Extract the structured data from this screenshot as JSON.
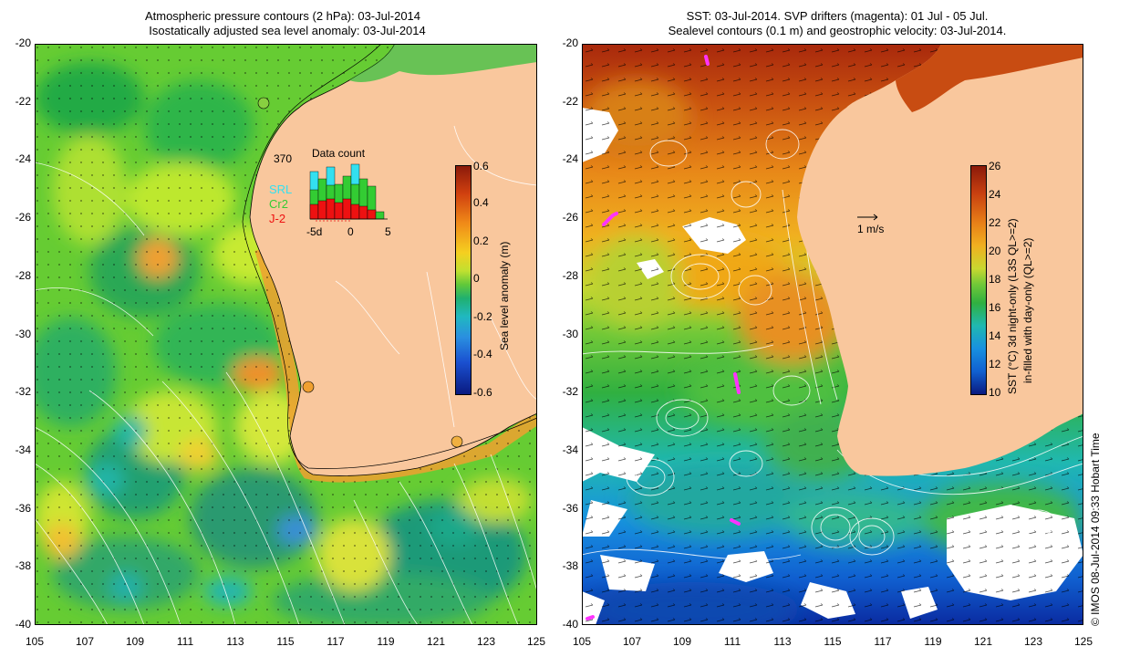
{
  "left_panel": {
    "title_line1": "Atmospheric pressure contours (2 hPa): 03-Jul-2014",
    "title_line2": "Isostatically adjusted sea level anomaly: 03-Jul-2014",
    "y_ticks": [
      "-20",
      "-22",
      "-24",
      "-26",
      "-28",
      "-30",
      "-32",
      "-34",
      "-36",
      "-38",
      "-40"
    ],
    "x_ticks": [
      "105",
      "107",
      "109",
      "111",
      "113",
      "115",
      "117",
      "119",
      "121",
      "123",
      "125"
    ],
    "colorbar": {
      "label": "Sea level anomaly (m)",
      "ticks": [
        "0.6",
        "0.4",
        "0.2",
        "0",
        "-0.2",
        "-0.4",
        "-0.6"
      ],
      "range": [
        -0.6,
        0.6
      ]
    },
    "inset": {
      "title": "Data count",
      "max_count": "370",
      "legend": [
        {
          "name": "SRL",
          "color": "#33e0f0"
        },
        {
          "name": "Cr2",
          "color": "#33cc33"
        },
        {
          "name": "J-2",
          "color": "#ee1111"
        }
      ],
      "x_ticks": [
        "-5d",
        "0",
        "5"
      ]
    }
  },
  "right_panel": {
    "title_line1": "SST: 03-Jul-2014. SVP drifters (magenta): 01 Jul - 05 Jul.",
    "title_line2": "Sealevel contours (0.1 m) and geostrophic velocity: 03-Jul-2014.",
    "y_ticks": [
      "-20",
      "-22",
      "-24",
      "-26",
      "-28",
      "-30",
      "-32",
      "-34",
      "-36",
      "-38",
      "-40"
    ],
    "x_ticks": [
      "105",
      "107",
      "109",
      "111",
      "113",
      "115",
      "117",
      "119",
      "121",
      "123",
      "125"
    ],
    "velocity_scale": "1 m/s",
    "colorbar": {
      "label_line1": "SST (°C) 3d night-only (L3S QL>=2)",
      "label_line2": "in-filled with day-only (QL>=2)",
      "ticks": [
        "26",
        "24",
        "22",
        "20",
        "18",
        "16",
        "14",
        "12",
        "10"
      ],
      "range": [
        10,
        26
      ]
    }
  },
  "credit": "© IMOS 08-Jul-2014 09:33 Hobart Time",
  "colors": {
    "land": "#f9c79d",
    "magenta": "#ff33ff"
  }
}
